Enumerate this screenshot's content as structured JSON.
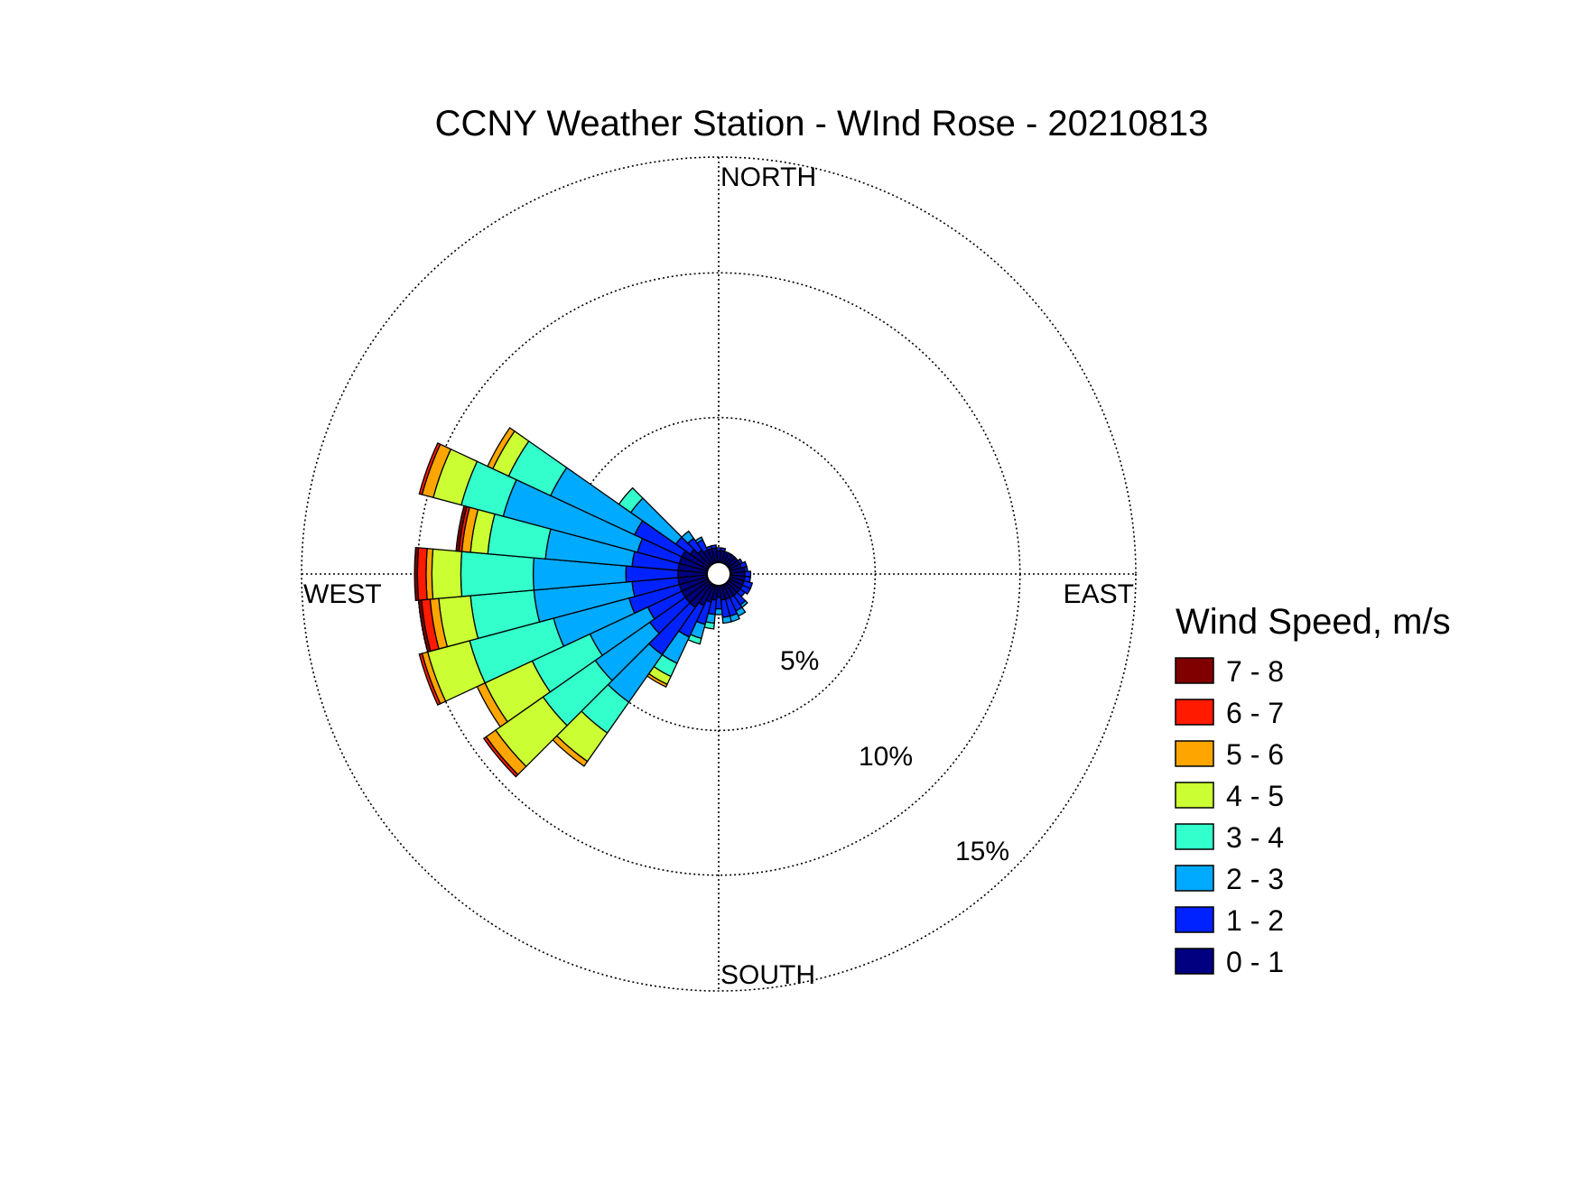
{
  "chart_data": {
    "type": "wind-rose",
    "title": "CCNY Weather Station - WInd Rose - 20210813",
    "direction_labels": {
      "north": "NORTH",
      "east": "EAST",
      "south": "SOUTH",
      "west": "WEST"
    },
    "radial_unit": "percent frequency",
    "radial_rings": [
      5,
      10,
      15
    ],
    "radial_ring_labels": [
      "5%",
      "10%",
      "15%"
    ],
    "radial_max": 14,
    "sector_count": 36,
    "sector_width_deg": 10,
    "legend": {
      "title": "Wind Speed, m/s",
      "bins": [
        {
          "label": "7 - 8",
          "color": "#800000"
        },
        {
          "label": "6 - 7",
          "color": "#ff1a00"
        },
        {
          "label": "5 - 6",
          "color": "#ffa500"
        },
        {
          "label": "4 - 5",
          "color": "#ccff33"
        },
        {
          "label": "3 - 4",
          "color": "#33ffcc"
        },
        {
          "label": "2 - 3",
          "color": "#00aaff"
        },
        {
          "label": "1 - 2",
          "color": "#0022ff"
        },
        {
          "label": "0 - 1",
          "color": "#000080"
        }
      ]
    },
    "speed_bins": [
      "0 - 1",
      "1 - 2",
      "2 - 3",
      "3 - 4",
      "4 - 5",
      "5 - 6",
      "6 - 7",
      "7 - 8"
    ],
    "bin_colors": [
      "#000080",
      "#0022ff",
      "#00aaff",
      "#33ffcc",
      "#ccff33",
      "#ffa500",
      "#ff1a00",
      "#800000"
    ],
    "sectors": [
      {
        "direction_deg": 90,
        "cumulative": [
          0.5,
          0.7
        ]
      },
      {
        "direction_deg": 100,
        "cumulative": [
          0.5,
          0.7
        ]
      },
      {
        "direction_deg": 110,
        "cumulative": [
          0.5,
          0.8
        ]
      },
      {
        "direction_deg": 120,
        "cumulative": [
          0.5,
          0.8
        ]
      },
      {
        "direction_deg": 130,
        "cumulative": [
          0.5,
          0.7
        ]
      },
      {
        "direction_deg": 140,
        "cumulative": [
          0.5,
          0.9,
          1.0
        ]
      },
      {
        "direction_deg": 150,
        "cumulative": [
          0.5,
          1.0,
          1.2
        ]
      },
      {
        "direction_deg": 160,
        "cumulative": [
          0.5,
          1.1,
          1.3
        ]
      },
      {
        "direction_deg": 170,
        "cumulative": [
          0.5,
          1.1,
          1.3
        ]
      },
      {
        "direction_deg": 180,
        "cumulative": [
          0.4,
          0.8,
          1.0
        ]
      },
      {
        "direction_deg": 190,
        "cumulative": [
          0.5,
          1.0,
          1.3,
          1.5
        ]
      },
      {
        "direction_deg": 200,
        "cumulative": [
          0.6,
          1.4,
          1.9,
          2.1
        ]
      },
      {
        "direction_deg": 210,
        "cumulative": [
          0.8,
          2.0,
          3.0,
          3.5,
          3.8,
          3.9
        ]
      },
      {
        "direction_deg": 220,
        "cumulative": [
          1.0,
          3.0,
          5.0,
          6.3,
          7.5,
          7.7
        ]
      },
      {
        "direction_deg": 230,
        "cumulative": [
          1.0,
          2.5,
          4.8,
          7.0,
          9.0,
          9.4,
          9.5
        ]
      },
      {
        "direction_deg": 240,
        "cumulative": [
          1.0,
          2.3,
          4.5,
          6.7,
          8.5,
          8.8
        ]
      },
      {
        "direction_deg": 250,
        "cumulative": [
          1.0,
          2.8,
          5.5,
          8.5,
          10.0,
          10.2,
          10.3
        ]
      },
      {
        "direction_deg": 260,
        "cumulative": [
          1.0,
          2.6,
          6.0,
          8.2,
          9.3,
          9.6,
          9.9,
          10.0
        ]
      },
      {
        "direction_deg": 270,
        "cumulative": [
          1.0,
          2.8,
          6.0,
          8.5,
          9.5,
          9.7,
          10.0,
          10.1
        ]
      },
      {
        "direction_deg": 280,
        "cumulative": [
          1.0,
          2.6,
          5.6,
          7.6,
          8.2,
          8.5,
          8.6,
          8.7
        ]
      },
      {
        "direction_deg": 290,
        "cumulative": [
          1.0,
          2.5,
          7.3,
          8.8,
          9.8,
          10.2,
          10.3
        ]
      },
      {
        "direction_deg": 300,
        "cumulative": [
          1.0,
          2.8,
          6.0,
          7.6,
          8.2,
          8.4
        ]
      },
      {
        "direction_deg": 310,
        "cumulative": [
          0.8,
          1.4,
          3.3,
          3.8
        ]
      },
      {
        "direction_deg": 320,
        "cumulative": [
          0.6,
          1.1,
          1.4
        ]
      },
      {
        "direction_deg": 330,
        "cumulative": [
          0.5,
          0.9,
          1.0
        ]
      },
      {
        "direction_deg": 340,
        "cumulative": [
          0.5,
          0.6
        ]
      },
      {
        "direction_deg": 350,
        "cumulative": [
          0.5,
          0.6
        ]
      },
      {
        "direction_deg": 0,
        "cumulative": [
          0.4,
          0.5
        ]
      },
      {
        "direction_deg": 10,
        "cumulative": [
          0.4,
          0.5
        ]
      },
      {
        "direction_deg": 20,
        "cumulative": [
          0.4
        ]
      },
      {
        "direction_deg": 30,
        "cumulative": [
          0.4
        ]
      },
      {
        "direction_deg": 40,
        "cumulative": [
          0.4
        ]
      },
      {
        "direction_deg": 50,
        "cumulative": [
          0.4
        ]
      },
      {
        "direction_deg": 60,
        "cumulative": [
          0.4,
          0.5
        ]
      },
      {
        "direction_deg": 70,
        "cumulative": [
          0.4,
          0.6
        ]
      },
      {
        "direction_deg": 80,
        "cumulative": [
          0.5,
          0.6
        ]
      }
    ]
  }
}
